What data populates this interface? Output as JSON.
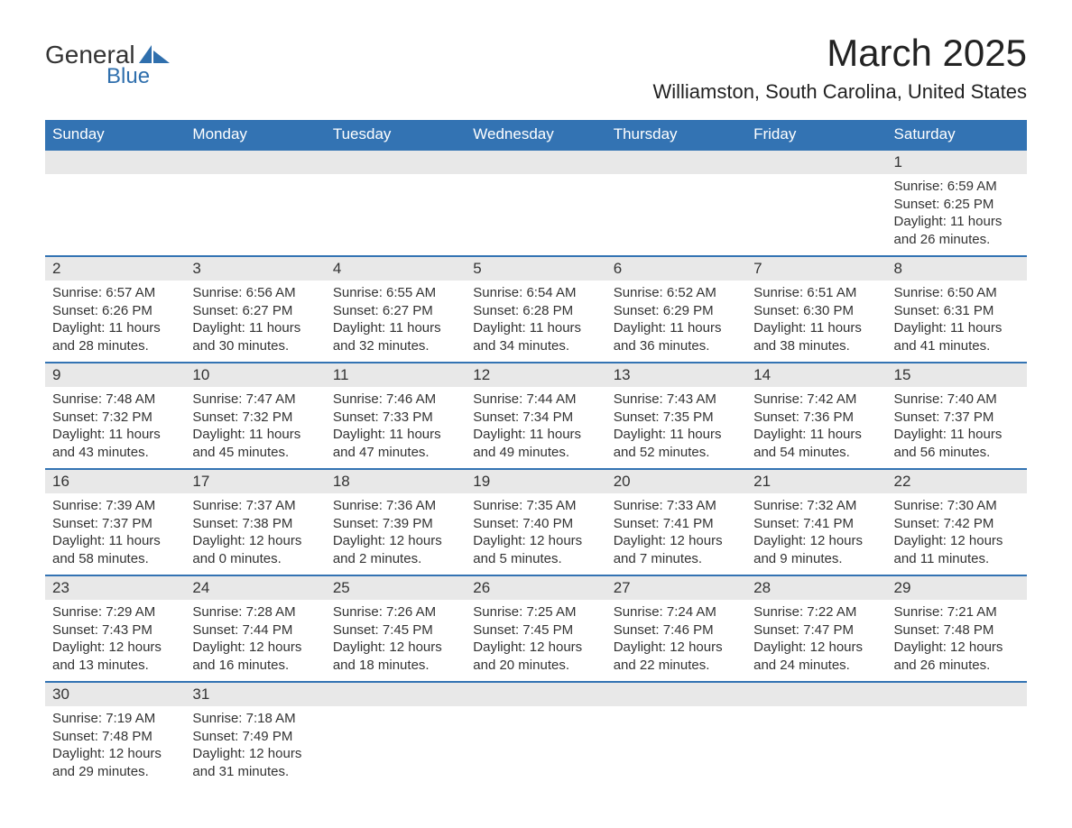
{
  "brand": {
    "word1": "General",
    "word2": "Blue",
    "logo_color": "#2f6fad",
    "text_color": "#333333"
  },
  "title": "March 2025",
  "location": "Williamston, South Carolina, United States",
  "colors": {
    "header_bg": "#3373b3",
    "header_text": "#ffffff",
    "daynum_bg": "#e8e8e8",
    "border": "#3373b3",
    "body_text": "#333333",
    "background": "#ffffff"
  },
  "font": {
    "family": "Arial",
    "title_size_pt": 32,
    "location_size_pt": 17,
    "header_size_pt": 13,
    "daynum_size_pt": 13,
    "detail_size_pt": 11
  },
  "day_headers": [
    "Sunday",
    "Monday",
    "Tuesday",
    "Wednesday",
    "Thursday",
    "Friday",
    "Saturday"
  ],
  "weeks": [
    [
      null,
      null,
      null,
      null,
      null,
      null,
      {
        "n": "1",
        "sunrise": "6:59 AM",
        "sunset": "6:25 PM",
        "dl1": "11 hours",
        "dl2": "and 26 minutes."
      }
    ],
    [
      {
        "n": "2",
        "sunrise": "6:57 AM",
        "sunset": "6:26 PM",
        "dl1": "11 hours",
        "dl2": "and 28 minutes."
      },
      {
        "n": "3",
        "sunrise": "6:56 AM",
        "sunset": "6:27 PM",
        "dl1": "11 hours",
        "dl2": "and 30 minutes."
      },
      {
        "n": "4",
        "sunrise": "6:55 AM",
        "sunset": "6:27 PM",
        "dl1": "11 hours",
        "dl2": "and 32 minutes."
      },
      {
        "n": "5",
        "sunrise": "6:54 AM",
        "sunset": "6:28 PM",
        "dl1": "11 hours",
        "dl2": "and 34 minutes."
      },
      {
        "n": "6",
        "sunrise": "6:52 AM",
        "sunset": "6:29 PM",
        "dl1": "11 hours",
        "dl2": "and 36 minutes."
      },
      {
        "n": "7",
        "sunrise": "6:51 AM",
        "sunset": "6:30 PM",
        "dl1": "11 hours",
        "dl2": "and 38 minutes."
      },
      {
        "n": "8",
        "sunrise": "6:50 AM",
        "sunset": "6:31 PM",
        "dl1": "11 hours",
        "dl2": "and 41 minutes."
      }
    ],
    [
      {
        "n": "9",
        "sunrise": "7:48 AM",
        "sunset": "7:32 PM",
        "dl1": "11 hours",
        "dl2": "and 43 minutes."
      },
      {
        "n": "10",
        "sunrise": "7:47 AM",
        "sunset": "7:32 PM",
        "dl1": "11 hours",
        "dl2": "and 45 minutes."
      },
      {
        "n": "11",
        "sunrise": "7:46 AM",
        "sunset": "7:33 PM",
        "dl1": "11 hours",
        "dl2": "and 47 minutes."
      },
      {
        "n": "12",
        "sunrise": "7:44 AM",
        "sunset": "7:34 PM",
        "dl1": "11 hours",
        "dl2": "and 49 minutes."
      },
      {
        "n": "13",
        "sunrise": "7:43 AM",
        "sunset": "7:35 PM",
        "dl1": "11 hours",
        "dl2": "and 52 minutes."
      },
      {
        "n": "14",
        "sunrise": "7:42 AM",
        "sunset": "7:36 PM",
        "dl1": "11 hours",
        "dl2": "and 54 minutes."
      },
      {
        "n": "15",
        "sunrise": "7:40 AM",
        "sunset": "7:37 PM",
        "dl1": "11 hours",
        "dl2": "and 56 minutes."
      }
    ],
    [
      {
        "n": "16",
        "sunrise": "7:39 AM",
        "sunset": "7:37 PM",
        "dl1": "11 hours",
        "dl2": "and 58 minutes."
      },
      {
        "n": "17",
        "sunrise": "7:37 AM",
        "sunset": "7:38 PM",
        "dl1": "12 hours",
        "dl2": "and 0 minutes."
      },
      {
        "n": "18",
        "sunrise": "7:36 AM",
        "sunset": "7:39 PM",
        "dl1": "12 hours",
        "dl2": "and 2 minutes."
      },
      {
        "n": "19",
        "sunrise": "7:35 AM",
        "sunset": "7:40 PM",
        "dl1": "12 hours",
        "dl2": "and 5 minutes."
      },
      {
        "n": "20",
        "sunrise": "7:33 AM",
        "sunset": "7:41 PM",
        "dl1": "12 hours",
        "dl2": "and 7 minutes."
      },
      {
        "n": "21",
        "sunrise": "7:32 AM",
        "sunset": "7:41 PM",
        "dl1": "12 hours",
        "dl2": "and 9 minutes."
      },
      {
        "n": "22",
        "sunrise": "7:30 AM",
        "sunset": "7:42 PM",
        "dl1": "12 hours",
        "dl2": "and 11 minutes."
      }
    ],
    [
      {
        "n": "23",
        "sunrise": "7:29 AM",
        "sunset": "7:43 PM",
        "dl1": "12 hours",
        "dl2": "and 13 minutes."
      },
      {
        "n": "24",
        "sunrise": "7:28 AM",
        "sunset": "7:44 PM",
        "dl1": "12 hours",
        "dl2": "and 16 minutes."
      },
      {
        "n": "25",
        "sunrise": "7:26 AM",
        "sunset": "7:45 PM",
        "dl1": "12 hours",
        "dl2": "and 18 minutes."
      },
      {
        "n": "26",
        "sunrise": "7:25 AM",
        "sunset": "7:45 PM",
        "dl1": "12 hours",
        "dl2": "and 20 minutes."
      },
      {
        "n": "27",
        "sunrise": "7:24 AM",
        "sunset": "7:46 PM",
        "dl1": "12 hours",
        "dl2": "and 22 minutes."
      },
      {
        "n": "28",
        "sunrise": "7:22 AM",
        "sunset": "7:47 PM",
        "dl1": "12 hours",
        "dl2": "and 24 minutes."
      },
      {
        "n": "29",
        "sunrise": "7:21 AM",
        "sunset": "7:48 PM",
        "dl1": "12 hours",
        "dl2": "and 26 minutes."
      }
    ],
    [
      {
        "n": "30",
        "sunrise": "7:19 AM",
        "sunset": "7:48 PM",
        "dl1": "12 hours",
        "dl2": "and 29 minutes."
      },
      {
        "n": "31",
        "sunrise": "7:18 AM",
        "sunset": "7:49 PM",
        "dl1": "12 hours",
        "dl2": "and 31 minutes."
      },
      null,
      null,
      null,
      null,
      null
    ]
  ],
  "labels": {
    "sunrise": "Sunrise: ",
    "sunset": "Sunset: ",
    "daylight": "Daylight: "
  }
}
